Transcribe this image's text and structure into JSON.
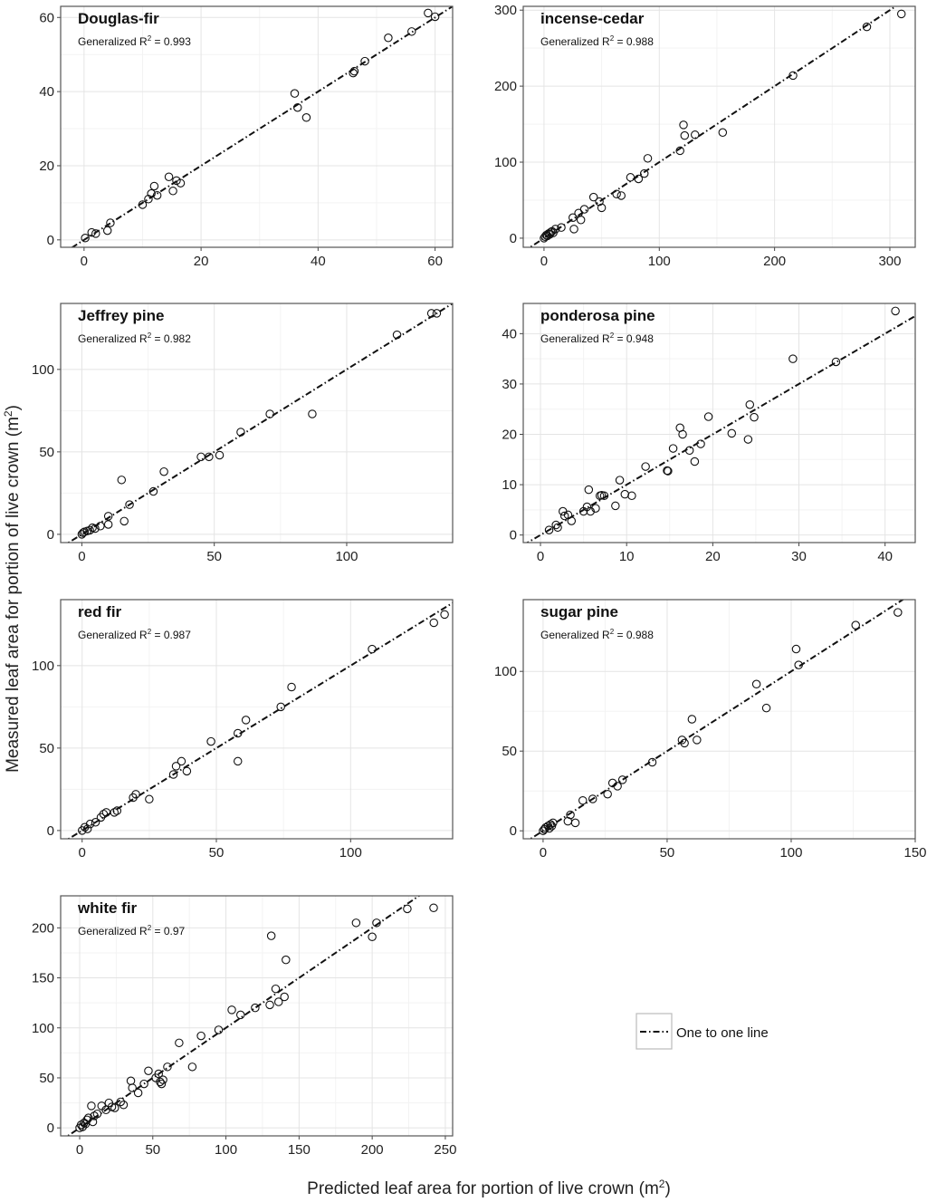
{
  "figure": {
    "ylabel_main": "Measured leaf area for portion of live crown (m",
    "xlabel_main": "Predicted leaf area for portion of live crown (m",
    "unit_superscript": "2",
    "label_close": ")",
    "r2_prefix": "Generalized R",
    "r2_superscript": "2",
    "r2_eq": " = "
  },
  "legend": {
    "label": "One to one line"
  },
  "chart_data": [
    {
      "type": "scatter",
      "title": "Douglas-fir",
      "r2": "0.993",
      "xlim": [
        -4,
        63
      ],
      "ylim": [
        -2,
        63
      ],
      "xticks": [
        0,
        20,
        40,
        60
      ],
      "yticks": [
        0,
        20,
        40,
        60
      ],
      "series": [
        {
          "name": "observations",
          "x": [
            0.2,
            1.3,
            2,
            4,
            4.5,
            10,
            11,
            11.5,
            12,
            12.5,
            14.5,
            15.2,
            15.8,
            16.5,
            36,
            36.5,
            38,
            46,
            46.2,
            48,
            52,
            56,
            58.8,
            60
          ],
          "y": [
            0.5,
            2,
            1.7,
            2.5,
            4.6,
            9.5,
            11,
            12.5,
            14.5,
            12,
            17,
            13.2,
            16,
            15.3,
            39.5,
            35.7,
            33,
            45,
            45.5,
            48.2,
            54.5,
            56.2,
            61.2,
            60.2
          ]
        }
      ],
      "reference_line": "one-to-one"
    },
    {
      "type": "scatter",
      "title": "incense-cedar",
      "r2": "0.988",
      "xlim": [
        -18,
        322
      ],
      "ylim": [
        -12,
        305
      ],
      "xticks": [
        0,
        100,
        200,
        300
      ],
      "yticks": [
        0,
        100,
        200,
        300
      ],
      "series": [
        {
          "name": "observations",
          "x": [
            0,
            1,
            2,
            3,
            4,
            5,
            6,
            7,
            8,
            10,
            15,
            25,
            26,
            30,
            32,
            35,
            43,
            48,
            50,
            63,
            67,
            75,
            82,
            87,
            90,
            118,
            121,
            122,
            131,
            155,
            216,
            280,
            310
          ],
          "y": [
            0,
            2,
            4,
            3,
            6,
            5,
            8,
            9,
            7,
            12,
            14,
            27,
            12,
            33,
            24,
            38,
            54,
            48,
            40,
            58,
            56,
            80,
            78,
            85,
            105,
            115,
            149,
            135,
            136,
            139,
            214,
            278,
            295
          ]
        }
      ],
      "reference_line": "one-to-one"
    },
    {
      "type": "scatter",
      "title": "Jeffrey pine",
      "r2": "0.982",
      "xlim": [
        -8,
        140
      ],
      "ylim": [
        -5,
        140
      ],
      "xticks": [
        0,
        50,
        100
      ],
      "yticks": [
        0,
        50,
        100
      ],
      "series": [
        {
          "name": "observations",
          "x": [
            0,
            0.5,
            1,
            2,
            3,
            4,
            5,
            7,
            10,
            10,
            15,
            16,
            18,
            27,
            31,
            45,
            48,
            52,
            60,
            71,
            87,
            119,
            132,
            134
          ],
          "y": [
            0,
            1,
            1.5,
            2,
            2.5,
            4,
            3.5,
            5,
            11,
            6,
            33,
            8,
            18,
            26,
            38,
            47,
            47,
            48,
            62,
            73,
            73,
            121,
            134,
            134
          ]
        }
      ],
      "reference_line": "one-to-one"
    },
    {
      "type": "scatter",
      "title": "ponderosa pine",
      "r2": "0.948",
      "xlim": [
        -2,
        43.5
      ],
      "ylim": [
        -1.5,
        46
      ],
      "xticks": [
        0,
        10,
        20,
        30,
        40
      ],
      "yticks": [
        0,
        10,
        20,
        30,
        40
      ],
      "series": [
        {
          "name": "observations",
          "x": [
            1,
            1.8,
            2,
            2.6,
            2.8,
            3.2,
            3.6,
            5,
            5.4,
            5.6,
            5.8,
            6.4,
            6.9,
            7.1,
            7.4,
            8.7,
            9.2,
            9.8,
            10.6,
            12.2,
            14.7,
            14.8,
            15.4,
            16.2,
            16.5,
            17.3,
            17.9,
            18.6,
            19.5,
            22.2,
            24.1,
            24.3,
            24.8,
            29.3,
            34.3,
            41.2
          ],
          "y": [
            1,
            2,
            1.5,
            4.7,
            3.8,
            4,
            2.8,
            4.7,
            5.6,
            9,
            4.7,
            5.3,
            7.8,
            7.9,
            7.8,
            5.8,
            10.9,
            8.1,
            7.8,
            13.6,
            12.8,
            12.7,
            17.2,
            21.3,
            20,
            16.8,
            14.6,
            18.1,
            23.5,
            20.2,
            19,
            25.9,
            23.4,
            35,
            34.4,
            44.5
          ]
        }
      ],
      "reference_line": "one-to-one"
    },
    {
      "type": "scatter",
      "title": "red fir",
      "r2": "0.987",
      "xlim": [
        -8,
        138
      ],
      "ylim": [
        -5,
        140
      ],
      "xticks": [
        0,
        50,
        100
      ],
      "yticks": [
        0,
        50,
        100
      ],
      "series": [
        {
          "name": "observations",
          "x": [
            0,
            1,
            2,
            3,
            5,
            7,
            8,
            9,
            12,
            13,
            19,
            20,
            25,
            34,
            35,
            37,
            39,
            48,
            58,
            58,
            61,
            74,
            78,
            108,
            131,
            135
          ],
          "y": [
            0,
            2,
            1,
            4,
            5,
            8,
            10,
            11,
            11,
            12,
            20,
            22,
            19,
            34,
            39,
            42,
            36,
            54,
            59,
            42,
            67,
            75,
            87,
            110,
            126,
            131
          ]
        }
      ],
      "reference_line": "one-to-one"
    },
    {
      "type": "scatter",
      "title": "sugar pine",
      "r2": "0.988",
      "xlim": [
        -8,
        150
      ],
      "ylim": [
        -5,
        145
      ],
      "xticks": [
        0,
        50,
        100,
        150
      ],
      "yticks": [
        0,
        50,
        100
      ],
      "series": [
        {
          "name": "observations",
          "x": [
            0,
            0.5,
            1,
            2,
            2.5,
            3,
            3.5,
            4,
            10,
            11,
            13,
            16,
            20,
            26,
            28,
            30,
            32,
            44,
            56,
            57,
            60,
            62,
            86,
            90,
            102,
            103,
            126,
            143
          ],
          "y": [
            0,
            1,
            2,
            3,
            1.5,
            4,
            3,
            5,
            6,
            10,
            5,
            19,
            20,
            23,
            30,
            28,
            32,
            43,
            57,
            55,
            70,
            57,
            92,
            77,
            114,
            104,
            129,
            137
          ]
        }
      ],
      "reference_line": "one-to-one"
    },
    {
      "type": "scatter",
      "title": "white fir",
      "r2": "0.97",
      "xlim": [
        -13,
        255
      ],
      "ylim": [
        -8,
        232
      ],
      "xticks": [
        0,
        50,
        100,
        150,
        200,
        250
      ],
      "yticks": [
        0,
        50,
        100,
        150,
        200
      ],
      "series": [
        {
          "name": "observations",
          "x": [
            0,
            1,
            2,
            3,
            4,
            5,
            6,
            8,
            9,
            10,
            12,
            15,
            18,
            20,
            22,
            24,
            28,
            30,
            35,
            36,
            40,
            44,
            47,
            52,
            54,
            55,
            56,
            57,
            60,
            68,
            77,
            83,
            95,
            104,
            110,
            120,
            130,
            131,
            134,
            136,
            140,
            141,
            189,
            200,
            203,
            224,
            242
          ],
          "y": [
            0,
            3,
            1,
            5,
            4,
            8,
            10,
            22,
            6,
            12,
            14,
            22,
            18,
            25,
            21,
            20,
            26,
            23,
            47,
            40,
            35,
            44,
            57,
            50,
            54,
            46,
            44,
            48,
            61,
            85,
            61,
            92,
            98,
            118,
            113,
            120,
            123,
            192,
            139,
            126,
            131,
            168,
            205,
            191,
            205,
            219,
            220
          ]
        }
      ],
      "reference_line": "one-to-one"
    }
  ]
}
